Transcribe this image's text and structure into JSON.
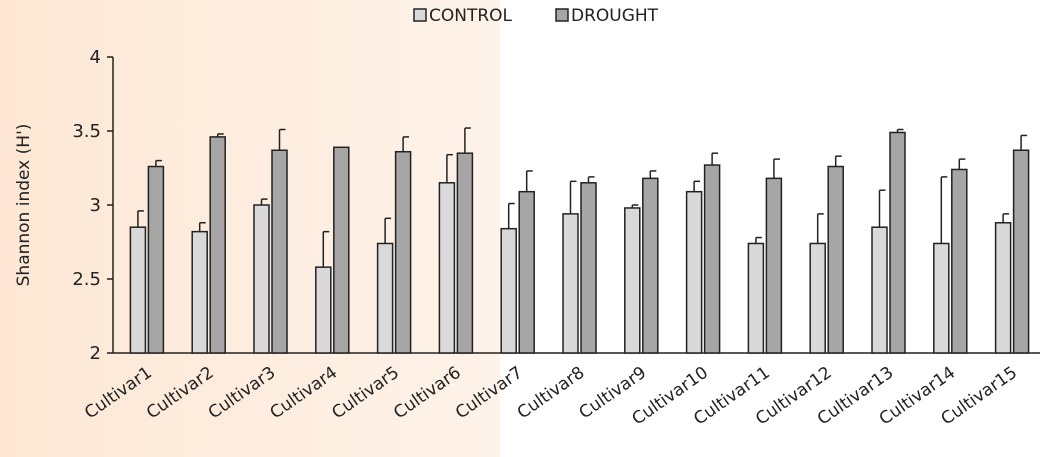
{
  "chart_data": {
    "type": "bar",
    "ylabel": "Shannon index (H')",
    "ylim": [
      2,
      4
    ],
    "yticks": [
      2,
      2.5,
      3,
      3.5,
      4
    ],
    "yticks_labels": [
      "2",
      "2.5",
      "3",
      "3.5",
      "4"
    ],
    "legend_position": "top-center",
    "categories": [
      "Cultivar1",
      "Cultivar2",
      "Cultivar3",
      "Cultivar4",
      "Cultivar5",
      "Cultivar6",
      "Cultivar7",
      "Cultivar8",
      "Cultivar9",
      "Cultivar10",
      "Cultivar11",
      "Cultivar12",
      "Cultivar13",
      "Cultivar14",
      "Cultivar15"
    ],
    "series": [
      {
        "name": "CONTROL",
        "color": "#d9d9d9",
        "values": [
          2.85,
          2.82,
          3.0,
          2.58,
          2.74,
          3.15,
          2.84,
          2.94,
          2.98,
          3.09,
          2.74,
          2.74,
          2.85,
          2.74,
          2.88
        ],
        "errors": [
          0.11,
          0.06,
          0.04,
          0.24,
          0.17,
          0.19,
          0.17,
          0.22,
          0.02,
          0.07,
          0.04,
          0.2,
          0.25,
          0.45,
          0.06
        ]
      },
      {
        "name": "DROUGHT",
        "color": "#a6a6a6",
        "values": [
          3.26,
          3.46,
          3.37,
          3.39,
          3.36,
          3.35,
          3.09,
          3.15,
          3.18,
          3.27,
          3.18,
          3.26,
          3.49,
          3.24,
          3.37
        ],
        "errors": [
          0.04,
          0.02,
          0.14,
          0.0,
          0.1,
          0.17,
          0.14,
          0.04,
          0.05,
          0.08,
          0.13,
          0.07,
          0.02,
          0.07,
          0.1
        ]
      }
    ]
  }
}
